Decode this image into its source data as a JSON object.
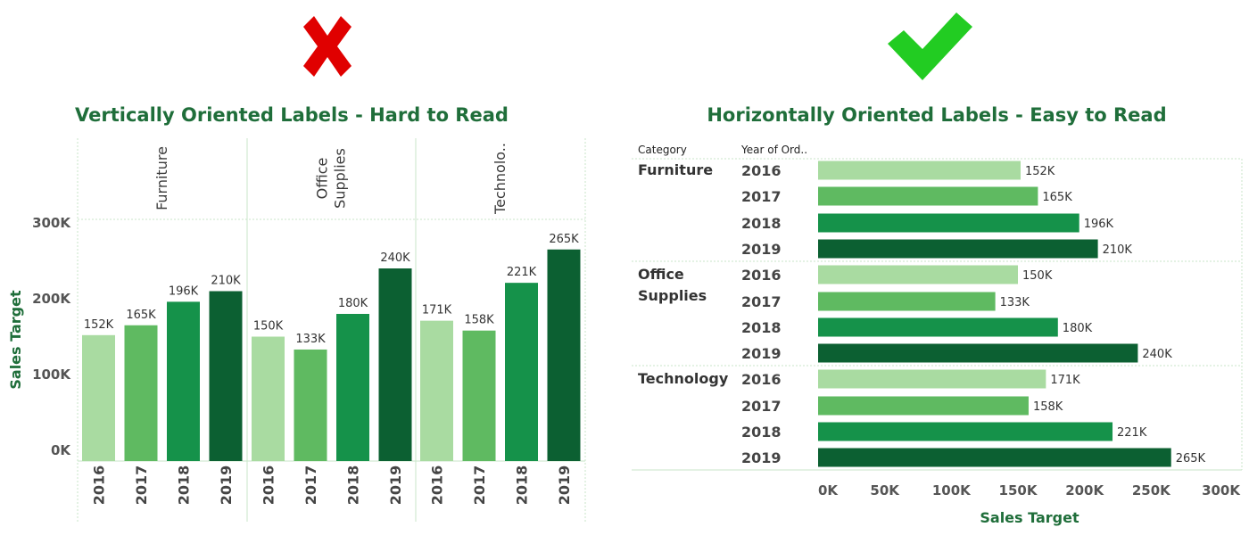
{
  "left_panel": {
    "marker": "cross-icon",
    "marker_color": "#e00000",
    "title": "Vertically Oriented Labels - Hard to Read"
  },
  "right_panel": {
    "marker": "checkmark-icon",
    "marker_color": "#22cc22",
    "title": "Horizontally Oriented Labels - Easy to Read",
    "header_category": "Category",
    "header_year": "Year of Ord.."
  },
  "colors": {
    "2016": "#a9dba1",
    "2017": "#5fba61",
    "2018": "#15924a",
    "2019": "#0c6032",
    "title": "#1f6e3a",
    "grid": "#c8e6c8"
  },
  "chart_data": [
    {
      "type": "bar",
      "orientation": "vertical",
      "title": "Vertically Oriented Labels - Hard to Read",
      "ylabel": "Sales Target",
      "ylim": [
        0,
        300000
      ],
      "y_ticks": [
        "0K",
        "100K",
        "200K",
        "300K"
      ],
      "categories": [
        {
          "label": "Furniture",
          "lines": [
            "Furniture"
          ]
        },
        {
          "label": "Office Supplies",
          "lines": [
            "Office",
            "Supplies"
          ]
        },
        {
          "label": "Technolo..",
          "lines": [
            "Technolo.."
          ]
        }
      ],
      "years": [
        "2016",
        "2017",
        "2018",
        "2019"
      ],
      "values": [
        [
          152000,
          165000,
          196000,
          210000
        ],
        [
          150000,
          133000,
          180000,
          240000
        ],
        [
          171000,
          158000,
          221000,
          265000
        ]
      ],
      "data_labels": [
        [
          "152K",
          "165K",
          "196K",
          "210K"
        ],
        [
          "150K",
          "133K",
          "180K",
          "240K"
        ],
        [
          "171K",
          "158K",
          "221K",
          "265K"
        ]
      ],
      "grid": false
    },
    {
      "type": "bar",
      "orientation": "horizontal",
      "title": "Horizontally Oriented Labels - Easy to Read",
      "xlabel": "Sales Target",
      "xlim": [
        0,
        300000
      ],
      "x_ticks": [
        "0K",
        "50K",
        "100K",
        "150K",
        "200K",
        "250K",
        "300K"
      ],
      "categories": [
        {
          "label": "Furniture",
          "lines": [
            "Furniture"
          ]
        },
        {
          "label": "Office Supplies",
          "lines": [
            "Office",
            "Supplies"
          ]
        },
        {
          "label": "Technology",
          "lines": [
            "Technology"
          ]
        }
      ],
      "years": [
        "2016",
        "2017",
        "2018",
        "2019"
      ],
      "values": [
        [
          152000,
          165000,
          196000,
          210000
        ],
        [
          150000,
          133000,
          180000,
          240000
        ],
        [
          171000,
          158000,
          221000,
          265000
        ]
      ],
      "data_labels": [
        [
          "152K",
          "165K",
          "196K",
          "210K"
        ],
        [
          "150K",
          "133K",
          "180K",
          "240K"
        ],
        [
          "171K",
          "158K",
          "221K",
          "265K"
        ]
      ],
      "grid": false
    }
  ]
}
